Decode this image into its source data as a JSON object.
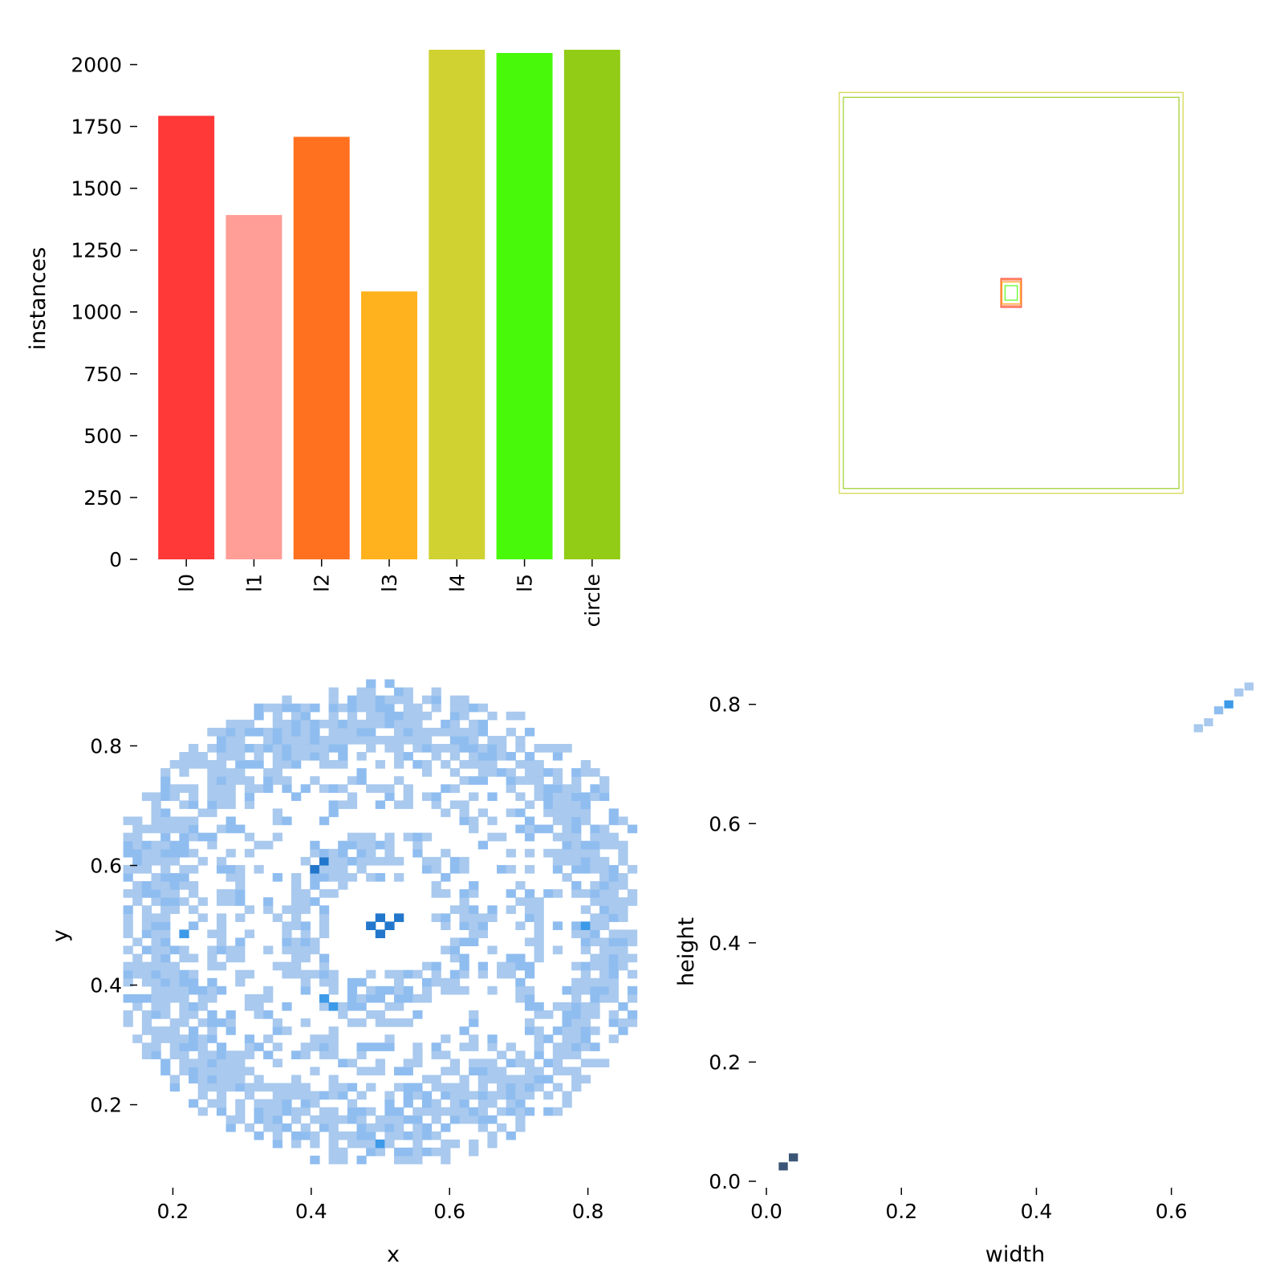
{
  "chart_data": [
    {
      "type": "bar",
      "categories": [
        "l0",
        "l1",
        "l2",
        "l3",
        "l4",
        "l5",
        "circle"
      ],
      "values": [
        1793,
        1392,
        1708,
        1083,
        2060,
        2047,
        2060
      ],
      "colors": [
        "#ff3838",
        "#ff9d97",
        "#ff701f",
        "#ffb21d",
        "#cfd231",
        "#48f90a",
        "#92cc17"
      ],
      "xlabel": "",
      "ylabel": "instances",
      "ylim": [
        0,
        2060
      ],
      "yticks": [
        0,
        250,
        500,
        750,
        1000,
        1250,
        1500,
        1750,
        2000
      ],
      "tick_labels": [
        "0",
        "250",
        "500",
        "750",
        "1000",
        "1250",
        "1500",
        "1750",
        "2000"
      ],
      "grid": false
    },
    {
      "type": "box-overlay",
      "boxes": [
        {
          "class": "l4",
          "w": 0.84,
          "h": 0.83,
          "color": "#cfd231"
        },
        {
          "class": "circle",
          "w": 0.82,
          "h": 0.81,
          "color": "#92cc17"
        },
        {
          "class": "l0",
          "w": 0.05,
          "h": 0.06,
          "color": "#ff3838"
        },
        {
          "class": "l1",
          "w": 0.045,
          "h": 0.05,
          "color": "#ff9d97"
        },
        {
          "class": "l2",
          "w": 0.05,
          "h": 0.055,
          "color": "#ff701f"
        },
        {
          "class": "l3",
          "w": 0.045,
          "h": 0.045,
          "color": "#ffb21d"
        },
        {
          "class": "l5",
          "w": 0.03,
          "h": 0.03,
          "color": "#48f90a"
        }
      ],
      "axes": "off"
    },
    {
      "type": "heatmap",
      "xlabel": "x",
      "ylabel": "y",
      "xlim": [
        0.145,
        0.855
      ],
      "ylim": [
        0.08,
        0.92
      ],
      "xticks": [
        0.2,
        0.4,
        0.6,
        0.8
      ],
      "xtick_labels": [
        "0.2",
        "0.4",
        "0.6",
        "0.8"
      ],
      "yticks": [
        0.2,
        0.4,
        0.6,
        0.8
      ],
      "ytick_labels": [
        "0.2",
        "0.4",
        "0.6",
        "0.8"
      ],
      "rings": [
        {
          "cx": 0.5,
          "cy": 0.5,
          "r": 0.335,
          "width": 0.07,
          "density": 0.9
        },
        {
          "cx": 0.5,
          "cy": 0.5,
          "r": 0.225,
          "width": 0.04,
          "density": 0.45
        },
        {
          "cx": 0.5,
          "cy": 0.5,
          "r": 0.125,
          "width": 0.045,
          "density": 0.75
        }
      ],
      "hotspots": [
        {
          "x": 0.5,
          "y": 0.51,
          "level": 4
        },
        {
          "x": 0.51,
          "y": 0.5,
          "level": 4
        },
        {
          "x": 0.49,
          "y": 0.5,
          "level": 4
        },
        {
          "x": 0.5,
          "y": 0.49,
          "level": 4
        },
        {
          "x": 0.52,
          "y": 0.51,
          "level": 4
        },
        {
          "x": 0.41,
          "y": 0.6,
          "level": 4
        },
        {
          "x": 0.42,
          "y": 0.61,
          "level": 4
        },
        {
          "x": 0.21,
          "y": 0.48,
          "level": 3
        },
        {
          "x": 0.8,
          "y": 0.5,
          "level": 3
        },
        {
          "x": 0.42,
          "y": 0.38,
          "level": 3
        },
        {
          "x": 0.43,
          "y": 0.37,
          "level": 3
        },
        {
          "x": 0.5,
          "y": 0.14,
          "level": 3
        },
        {
          "x": 0.37,
          "y": 0.47,
          "level": 2
        },
        {
          "x": 0.63,
          "y": 0.47,
          "level": 2
        },
        {
          "x": 0.45,
          "y": 0.63,
          "level": 2
        },
        {
          "x": 0.47,
          "y": 0.37,
          "level": 2
        },
        {
          "x": 0.5,
          "y": 0.86,
          "level": 2
        },
        {
          "x": 0.53,
          "y": 0.85,
          "level": 2
        }
      ],
      "palette": [
        "#ffffff",
        "#a9c9ee",
        "#8fbdf0",
        "#3d9ae8",
        "#2277cc",
        "#3a5576"
      ]
    },
    {
      "type": "heatmap",
      "xlabel": "width",
      "ylabel": "height",
      "xlim": [
        0.0,
        0.705
      ],
      "ylim": [
        0.0,
        0.84
      ],
      "xticks": [
        0.0,
        0.2,
        0.4,
        0.6
      ],
      "xtick_labels": [
        "0.0",
        "0.2",
        "0.4",
        "0.6"
      ],
      "yticks": [
        0.0,
        0.2,
        0.4,
        0.6,
        0.8
      ],
      "ytick_labels": [
        "0.0",
        "0.2",
        "0.4",
        "0.6",
        "0.8"
      ],
      "cells": [
        {
          "x": 0.025,
          "y": 0.025,
          "level": 5
        },
        {
          "x": 0.04,
          "y": 0.04,
          "level": 5
        },
        {
          "x": 0.64,
          "y": 0.76,
          "level": 1
        },
        {
          "x": 0.655,
          "y": 0.77,
          "level": 1
        },
        {
          "x": 0.67,
          "y": 0.79,
          "level": 2
        },
        {
          "x": 0.685,
          "y": 0.8,
          "level": 3
        },
        {
          "x": 0.7,
          "y": 0.82,
          "level": 1
        },
        {
          "x": 0.715,
          "y": 0.83,
          "level": 1
        }
      ],
      "palette": [
        "#ffffff",
        "#a9c9ee",
        "#8fbdf0",
        "#3d9ae8",
        "#2277cc",
        "#3a5576"
      ]
    }
  ]
}
